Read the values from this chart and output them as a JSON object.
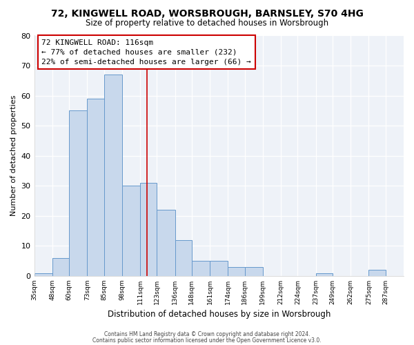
{
  "title": "72, KINGWELL ROAD, WORSBROUGH, BARNSLEY, S70 4HG",
  "subtitle": "Size of property relative to detached houses in Worsbrough",
  "xlabel": "Distribution of detached houses by size in Worsbrough",
  "ylabel": "Number of detached properties",
  "bar_color": "#c8d8ec",
  "bar_edge_color": "#6699cc",
  "categories": [
    "35sqm",
    "48sqm",
    "60sqm",
    "73sqm",
    "85sqm",
    "98sqm",
    "111sqm",
    "123sqm",
    "136sqm",
    "148sqm",
    "161sqm",
    "174sqm",
    "186sqm",
    "199sqm",
    "212sqm",
    "224sqm",
    "237sqm",
    "249sqm",
    "262sqm",
    "275sqm",
    "287sqm"
  ],
  "values": [
    1,
    6,
    55,
    59,
    67,
    30,
    31,
    22,
    12,
    5,
    5,
    3,
    3,
    0,
    0,
    0,
    1,
    0,
    0,
    2,
    0
  ],
  "ylim": [
    0,
    80
  ],
  "yticks": [
    0,
    10,
    20,
    30,
    40,
    50,
    60,
    70,
    80
  ],
  "property_line_x": 116,
  "bin_edges": [
    35,
    48,
    60,
    73,
    85,
    98,
    111,
    123,
    136,
    148,
    161,
    174,
    186,
    199,
    212,
    224,
    237,
    249,
    262,
    275,
    287,
    300
  ],
  "annotation_title": "72 KINGWELL ROAD: 116sqm",
  "annotation_line1": "← 77% of detached houses are smaller (232)",
  "annotation_line2": "22% of semi-detached houses are larger (66) →",
  "vline_color": "#cc0000",
  "annotation_box_color": "#ffffff",
  "annotation_box_edge": "#cc0000",
  "footer1": "Contains HM Land Registry data © Crown copyright and database right 2024.",
  "footer2": "Contains public sector information licensed under the Open Government Licence v3.0.",
  "background_color": "#ffffff",
  "plot_bg_color": "#eef2f8",
  "grid_color": "#ffffff",
  "title_fontsize": 10,
  "subtitle_fontsize": 8.5
}
